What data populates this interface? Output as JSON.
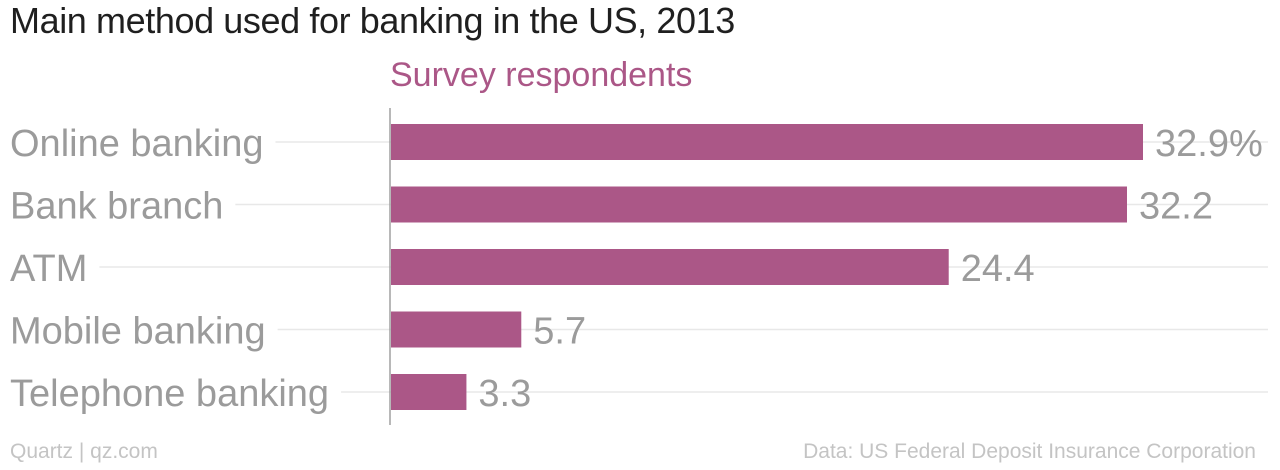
{
  "title": "Main method used for banking in the US, 2013",
  "series_header": "Survey respondents",
  "footer_left": "Quartz | qz.com",
  "footer_right": "Data: US Federal Deposit Insurance Corporation",
  "colors": {
    "bar": "#ab5787",
    "label": "#9b9b9b",
    "title": "#1f1f1f",
    "gridline": "#e8e8e8",
    "axis": "#a0a0a0",
    "footer": "#c4c4c4"
  },
  "chart_data": {
    "type": "bar",
    "orientation": "horizontal",
    "title": "Main method used for banking in the US, 2013",
    "series": [
      {
        "name": "Survey respondents",
        "values": [
          32.9,
          32.2,
          24.4,
          5.7,
          3.3
        ]
      }
    ],
    "categories": [
      "Online banking",
      "Bank branch",
      "ATM",
      "Mobile banking",
      "Telephone banking"
    ],
    "value_labels": [
      "32.9%",
      "32.2",
      "24.4",
      "5.7",
      "3.3"
    ],
    "xlim": [
      0,
      32.9
    ],
    "grid": true,
    "unit": "%"
  }
}
